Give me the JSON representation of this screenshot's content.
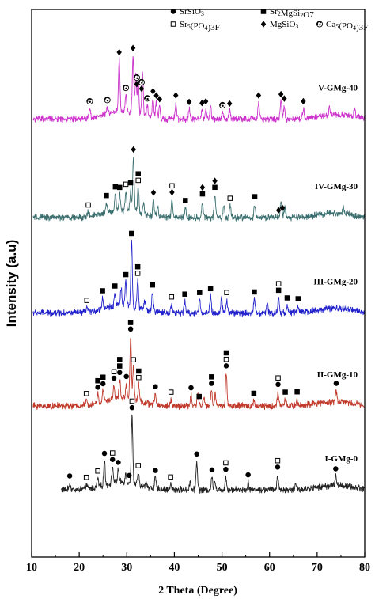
{
  "chart_data": {
    "type": "line",
    "xlabel": "2 Theta (Degree)",
    "ylabel": "Intensity (a.u)",
    "xlim": [
      10,
      80
    ],
    "xticks": [
      10,
      20,
      30,
      40,
      50,
      60,
      70,
      80
    ],
    "ylim": [
      0,
      100
    ],
    "grid": false,
    "legend_placement": "top-right",
    "legend": [
      {
        "symbol": "filled-circle",
        "label": "SrSiO3",
        "text": "SrSiO",
        "sub": "3",
        "tail": ""
      },
      {
        "symbol": "filled-square",
        "label": "Sr2MgSi2O7",
        "text": "Sr",
        "sub": "2",
        "mid": "MgSi",
        "sub2": "2",
        "tail": "O7"
      },
      {
        "symbol": "open-square",
        "label": "Sr5(PO4)3F",
        "text": "Sr",
        "sub": "5",
        "mid": "(PO",
        "sub2": "4",
        "tail": ")3F"
      },
      {
        "symbol": "filled-diamond",
        "label": "MgSiO3",
        "text": "MgSiO",
        "sub": "3",
        "tail": ""
      },
      {
        "symbol": "swirl",
        "label": "Ca5(PO4)3F",
        "text": "Ca",
        "sub": "5",
        "mid": "(PO",
        "sub2": "4",
        "tail": ")3F"
      }
    ],
    "series": [
      {
        "name": "I-GMg-0",
        "color": "#222222",
        "baseline": 12.3,
        "peaks": [
          [
            18.0,
            1.2
          ],
          [
            21.5,
            0.8
          ],
          [
            23.9,
            1.6
          ],
          [
            25.3,
            4.5
          ],
          [
            27.0,
            3.0
          ],
          [
            28.2,
            2.3
          ],
          [
            29.8,
            1.6
          ],
          [
            31.1,
            12.5
          ],
          [
            32.4,
            2.2
          ],
          [
            34.1,
            0.9
          ],
          [
            36.0,
            2.0
          ],
          [
            39.2,
            1.0
          ],
          [
            43.3,
            1.5
          ],
          [
            44.7,
            5.2
          ],
          [
            47.9,
            2.3
          ],
          [
            48.5,
            1.7
          ],
          [
            50.8,
            2.4
          ],
          [
            55.5,
            1.4
          ],
          [
            61.7,
            2.8
          ],
          [
            65.5,
            0.9
          ],
          [
            73.9,
            1.7
          ]
        ],
        "markers": [
          {
            "x": 18.0,
            "stack": [
              "filled-circle"
            ]
          },
          {
            "x": 21.5,
            "stack": [
              "open-square"
            ]
          },
          {
            "x": 23.9,
            "stack": [
              "open-square"
            ]
          },
          {
            "x": 25.3,
            "stack": [
              "filled-circle"
            ]
          },
          {
            "x": 27.0,
            "stack": [
              "filled-circle",
              "open-square"
            ]
          },
          {
            "x": 28.2,
            "stack": [
              "filled-circle"
            ]
          },
          {
            "x": 30.5,
            "stack": [
              "filled-circle"
            ]
          },
          {
            "x": 31.1,
            "stack": [
              "filled-circle",
              "open-square"
            ]
          },
          {
            "x": 32.4,
            "stack": [
              "open-square"
            ]
          },
          {
            "x": 36.0,
            "stack": [
              "filled-circle"
            ]
          },
          {
            "x": 39.2,
            "stack": [
              "open-square"
            ]
          },
          {
            "x": 44.7,
            "stack": [
              "filled-circle"
            ]
          },
          {
            "x": 47.9,
            "stack": [
              "filled-circle"
            ]
          },
          {
            "x": 50.8,
            "stack": [
              "filled-circle",
              "open-square"
            ]
          },
          {
            "x": 55.5,
            "stack": [
              "filled-circle"
            ]
          },
          {
            "x": 61.7,
            "stack": [
              "filled-circle",
              "open-square"
            ]
          },
          {
            "x": 73.9,
            "stack": [
              "filled-circle"
            ]
          }
        ]
      },
      {
        "name": "II-GMg-10",
        "color": "#c0392b",
        "baseline": 27.6,
        "peaks": [
          [
            21.5,
            0.8
          ],
          [
            23.9,
            1.6
          ],
          [
            25.0,
            2.0
          ],
          [
            27.3,
            2.5
          ],
          [
            28.5,
            3.4
          ],
          [
            29.9,
            2.7
          ],
          [
            30.8,
            11.5
          ],
          [
            31.4,
            6.0
          ],
          [
            32.5,
            3.0
          ],
          [
            36.0,
            2.0
          ],
          [
            39.3,
            1.2
          ],
          [
            43.5,
            2.0
          ],
          [
            44.9,
            2.6
          ],
          [
            46.2,
            1.8
          ],
          [
            47.8,
            2.8
          ],
          [
            48.6,
            2.1
          ],
          [
            50.9,
            6.0
          ],
          [
            56.7,
            1.0
          ],
          [
            61.8,
            2.6
          ],
          [
            63.3,
            1.2
          ],
          [
            65.8,
            1.2
          ],
          [
            74.0,
            2.0
          ]
        ],
        "markers": [
          {
            "x": 21.5,
            "stack": [
              "open-square"
            ]
          },
          {
            "x": 23.9,
            "stack": [
              "filled-circle",
              "filled-square"
            ]
          },
          {
            "x": 25.0,
            "stack": [
              "filled-circle",
              "filled-square"
            ]
          },
          {
            "x": 27.3,
            "stack": [
              "filled-circle",
              "open-square"
            ]
          },
          {
            "x": 28.5,
            "stack": [
              "filled-circle",
              "filled-square",
              "filled-square"
            ]
          },
          {
            "x": 29.9,
            "stack": [
              "filled-circle"
            ]
          },
          {
            "x": 30.8,
            "stack": [
              "filled-circle",
              "filled-square"
            ]
          },
          {
            "x": 31.4,
            "stack": [
              "open-square"
            ]
          },
          {
            "x": 32.5,
            "stack": [
              "open-square",
              "filled-square"
            ]
          },
          {
            "x": 36.0,
            "stack": [
              "filled-circle"
            ]
          },
          {
            "x": 39.3,
            "stack": [
              "open-square"
            ]
          },
          {
            "x": 43.5,
            "stack": [
              "filled-circle"
            ]
          },
          {
            "x": 45.2,
            "stack": [
              "filled-square"
            ]
          },
          {
            "x": 47.8,
            "stack": [
              "filled-circle",
              "filled-square"
            ]
          },
          {
            "x": 50.9,
            "stack": [
              "filled-circle",
              "open-square",
              "filled-square"
            ]
          },
          {
            "x": 56.7,
            "stack": [
              "filled-square"
            ]
          },
          {
            "x": 61.8,
            "stack": [
              "filled-circle",
              "open-square"
            ]
          },
          {
            "x": 63.3,
            "stack": [
              "filled-square"
            ]
          },
          {
            "x": 65.8,
            "stack": [
              "filled-square"
            ]
          },
          {
            "x": 74.0,
            "stack": [
              "filled-circle"
            ]
          }
        ]
      },
      {
        "name": "III-GMg-20",
        "color": "#2222cc",
        "baseline": 44.6,
        "peaks": [
          [
            21.6,
            0.8
          ],
          [
            24.9,
            2.0
          ],
          [
            27.5,
            2.3
          ],
          [
            28.8,
            3.1
          ],
          [
            29.8,
            4.3
          ],
          [
            31.0,
            12.0
          ],
          [
            32.3,
            5.0
          ],
          [
            33.8,
            1.5
          ],
          [
            35.4,
            3.5
          ],
          [
            39.4,
            1.6
          ],
          [
            42.2,
            2.1
          ],
          [
            45.3,
            2.4
          ],
          [
            47.6,
            3.1
          ],
          [
            49.9,
            2.4
          ],
          [
            51.0,
            2.4
          ],
          [
            56.8,
            2.5
          ],
          [
            59.5,
            1.6
          ],
          [
            61.9,
            2.8
          ],
          [
            63.7,
            1.4
          ],
          [
            66.0,
            1.2
          ]
        ],
        "markers": [
          {
            "x": 21.6,
            "stack": [
              "open-square"
            ]
          },
          {
            "x": 24.9,
            "stack": [
              "filled-square"
            ]
          },
          {
            "x": 27.5,
            "stack": [
              "filled-square"
            ]
          },
          {
            "x": 29.8,
            "stack": [
              "filled-square"
            ]
          },
          {
            "x": 31.0,
            "stack": [
              "filled-square"
            ]
          },
          {
            "x": 32.3,
            "stack": [
              "open-square",
              "filled-square"
            ]
          },
          {
            "x": 35.4,
            "stack": [
              "filled-square"
            ]
          },
          {
            "x": 39.4,
            "stack": [
              "open-square"
            ]
          },
          {
            "x": 42.2,
            "stack": [
              "filled-square"
            ]
          },
          {
            "x": 45.3,
            "stack": [
              "filled-square"
            ]
          },
          {
            "x": 47.6,
            "stack": [
              "filled-square"
            ]
          },
          {
            "x": 51.0,
            "stack": [
              "open-square"
            ]
          },
          {
            "x": 56.8,
            "stack": [
              "filled-square"
            ]
          },
          {
            "x": 61.9,
            "stack": [
              "filled-square",
              "open-square"
            ]
          },
          {
            "x": 63.7,
            "stack": [
              "filled-square"
            ]
          },
          {
            "x": 66.0,
            "stack": [
              "filled-square"
            ]
          }
        ]
      },
      {
        "name": "IV-GMg-30",
        "color": "#3b6f6f",
        "baseline": 62.0,
        "peaks": [
          [
            21.9,
            0.8
          ],
          [
            25.7,
            1.8
          ],
          [
            27.6,
            3.0
          ],
          [
            28.5,
            2.8
          ],
          [
            29.8,
            3.4
          ],
          [
            30.8,
            3.8
          ],
          [
            31.4,
            10.0
          ],
          [
            32.4,
            4.6
          ],
          [
            33.5,
            2.0
          ],
          [
            35.6,
            3.0
          ],
          [
            36.5,
            2.0
          ],
          [
            39.5,
            3.3
          ],
          [
            42.3,
            1.8
          ],
          [
            45.9,
            3.0
          ],
          [
            48.5,
            4.2
          ],
          [
            50.4,
            2.0
          ],
          [
            51.7,
            2.2
          ],
          [
            56.9,
            2.5
          ],
          [
            62.4,
            2.8
          ],
          [
            63.2,
            2.0
          ],
          [
            75.5,
            1.0
          ]
        ],
        "markers": [
          {
            "x": 21.9,
            "stack": [
              "open-square"
            ]
          },
          {
            "x": 25.7,
            "stack": [
              "filled-square"
            ]
          },
          {
            "x": 27.6,
            "stack": [
              "filled-square"
            ]
          },
          {
            "x": 28.5,
            "stack": [
              "filled-square"
            ]
          },
          {
            "x": 29.8,
            "stack": [
              "open-square"
            ]
          },
          {
            "x": 30.8,
            "stack": [
              "filled-square"
            ]
          },
          {
            "x": 31.4,
            "stack": [
              "filled-diamond"
            ]
          },
          {
            "x": 32.4,
            "stack": [
              "open-square",
              "filled-square"
            ]
          },
          {
            "x": 35.6,
            "stack": [
              "filled-diamond"
            ]
          },
          {
            "x": 39.5,
            "stack": [
              "filled-diamond",
              "open-square"
            ]
          },
          {
            "x": 42.3,
            "stack": [
              "filled-square"
            ]
          },
          {
            "x": 45.9,
            "stack": [
              "filled-square",
              "filled-diamond"
            ]
          },
          {
            "x": 48.5,
            "stack": [
              "filled-square",
              "filled-diamond"
            ]
          },
          {
            "x": 51.7,
            "stack": [
              "open-square"
            ]
          },
          {
            "x": 56.9,
            "stack": [
              "filled-square"
            ]
          },
          {
            "x": 61.9,
            "stack": [
              "filled-diamond"
            ]
          },
          {
            "x": 62.7,
            "stack": [
              "filled-diamond"
            ]
          }
        ]
      },
      {
        "name": "V-GMg-40",
        "color": "#cc33cc",
        "baseline": 80.0,
        "peaks": [
          [
            22.2,
            1.7
          ],
          [
            25.9,
            1.2
          ],
          [
            28.4,
            9.5
          ],
          [
            29.8,
            3.0
          ],
          [
            31.3,
            10.5
          ],
          [
            31.9,
            7.2
          ],
          [
            32.4,
            6.2
          ],
          [
            33.3,
            8.0
          ],
          [
            34.3,
            2.0
          ],
          [
            35.5,
            3.5
          ],
          [
            36.2,
            2.8
          ],
          [
            36.9,
            2.2
          ],
          [
            40.3,
            3.0
          ],
          [
            43.1,
            1.8
          ],
          [
            45.8,
            1.6
          ],
          [
            46.6,
            1.9
          ],
          [
            47.6,
            2.2
          ],
          [
            50.1,
            1.2
          ],
          [
            51.6,
            1.5
          ],
          [
            57.7,
            3.0
          ],
          [
            62.4,
            3.2
          ],
          [
            63.1,
            2.4
          ],
          [
            67.1,
            1.8
          ],
          [
            72.6,
            1.2
          ],
          [
            77.9,
            1.6
          ]
        ],
        "markers": [
          {
            "x": 22.2,
            "stack": [
              "swirl"
            ]
          },
          {
            "x": 25.9,
            "stack": [
              "swirl"
            ]
          },
          {
            "x": 28.4,
            "stack": [
              "filled-diamond"
            ]
          },
          {
            "x": 29.8,
            "stack": [
              "swirl"
            ]
          },
          {
            "x": 31.3,
            "stack": [
              "filled-diamond"
            ]
          },
          {
            "x": 32.1,
            "stack": [
              "filled-diamond",
              "swirl"
            ]
          },
          {
            "x": 33.1,
            "stack": [
              "filled-diamond",
              "swirl"
            ]
          },
          {
            "x": 34.3,
            "stack": [
              "swirl"
            ]
          },
          {
            "x": 35.5,
            "stack": [
              "filled-diamond"
            ]
          },
          {
            "x": 36.2,
            "stack": [
              "filled-diamond"
            ]
          },
          {
            "x": 36.9,
            "stack": [
              "filled-diamond"
            ]
          },
          {
            "x": 40.3,
            "stack": [
              "filled-diamond"
            ]
          },
          {
            "x": 43.1,
            "stack": [
              "filled-diamond"
            ]
          },
          {
            "x": 45.8,
            "stack": [
              "filled-diamond"
            ]
          },
          {
            "x": 46.6,
            "stack": [
              "filled-diamond"
            ]
          },
          {
            "x": 50.1,
            "stack": [
              "swirl"
            ]
          },
          {
            "x": 51.6,
            "stack": [
              "filled-diamond"
            ]
          },
          {
            "x": 57.7,
            "stack": [
              "filled-diamond"
            ]
          },
          {
            "x": 62.4,
            "stack": [
              "filled-diamond"
            ]
          },
          {
            "x": 63.1,
            "stack": [
              "filled-diamond"
            ]
          },
          {
            "x": 67.1,
            "stack": [
              "filled-diamond"
            ]
          }
        ]
      }
    ]
  }
}
